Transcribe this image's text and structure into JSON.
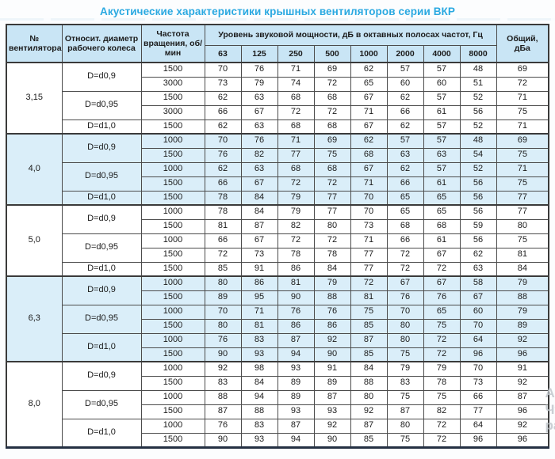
{
  "title": "Акустические характеристики крышных вентиляторов серии ВКР",
  "colors": {
    "title_accent": "#2aa9e1",
    "header_bg": "#c9e5f5",
    "section_tint_bg": "#daeef9",
    "grid_border": "#4c4c4c",
    "outer_border": "#3a3a3a"
  },
  "watermark": {
    "lines": [
      "Ан",
      "Чт",
      "ра"
    ]
  },
  "table": {
    "header": {
      "fan": "№ вентилятора",
      "diameter": "Относит. диаметр рабочего колеса",
      "rpm": "Частота вращения, об/мин",
      "spl": "Уровень звуковой мощности, дБ в октавных полосах частот, Гц",
      "freqs": [
        "63",
        "125",
        "250",
        "500",
        "1000",
        "2000",
        "4000",
        "8000"
      ],
      "total": "Общий, дБа"
    },
    "sections": [
      {
        "fan": "3,15",
        "tinted": false,
        "groups": [
          {
            "diameter": "D=d0,9",
            "rows": [
              {
                "rpm": "1500",
                "values": [
                  70,
                  76,
                  71,
                  69,
                  62,
                  57,
                  57,
                  48
                ],
                "total": 69
              },
              {
                "rpm": "3000",
                "values": [
                  73,
                  79,
                  74,
                  72,
                  65,
                  60,
                  60,
                  51
                ],
                "total": 72
              }
            ]
          },
          {
            "diameter": "D=d0,95",
            "rows": [
              {
                "rpm": "1500",
                "values": [
                  62,
                  63,
                  68,
                  68,
                  67,
                  62,
                  57,
                  52
                ],
                "total": 71
              },
              {
                "rpm": "3000",
                "values": [
                  66,
                  67,
                  72,
                  72,
                  71,
                  66,
                  61,
                  56
                ],
                "total": 75
              }
            ]
          },
          {
            "diameter": "D=d1,0",
            "rows": [
              {
                "rpm": "1500",
                "values": [
                  62,
                  63,
                  68,
                  68,
                  67,
                  62,
                  57,
                  52
                ],
                "total": 71
              }
            ]
          }
        ]
      },
      {
        "fan": "4,0",
        "tinted": true,
        "groups": [
          {
            "diameter": "D=d0,9",
            "rows": [
              {
                "rpm": "1000",
                "values": [
                  70,
                  76,
                  71,
                  69,
                  62,
                  57,
                  57,
                  48
                ],
                "total": 69
              },
              {
                "rpm": "1500",
                "values": [
                  76,
                  82,
                  77,
                  75,
                  68,
                  63,
                  63,
                  54
                ],
                "total": 75
              }
            ]
          },
          {
            "diameter": "D=d0,95",
            "rows": [
              {
                "rpm": "1000",
                "values": [
                  62,
                  63,
                  68,
                  68,
                  67,
                  62,
                  57,
                  52
                ],
                "total": 71
              },
              {
                "rpm": "1500",
                "values": [
                  66,
                  67,
                  72,
                  72,
                  71,
                  66,
                  61,
                  56
                ],
                "total": 75
              }
            ]
          },
          {
            "diameter": "D=d1,0",
            "rows": [
              {
                "rpm": "1500",
                "values": [
                  78,
                  84,
                  79,
                  77,
                  70,
                  65,
                  65,
                  56
                ],
                "total": 77
              }
            ]
          }
        ]
      },
      {
        "fan": "5,0",
        "tinted": false,
        "groups": [
          {
            "diameter": "D=d0,9",
            "rows": [
              {
                "rpm": "1000",
                "values": [
                  78,
                  84,
                  79,
                  77,
                  70,
                  65,
                  65,
                  56
                ],
                "total": 77
              },
              {
                "rpm": "1500",
                "values": [
                  81,
                  87,
                  82,
                  80,
                  73,
                  68,
                  68,
                  59
                ],
                "total": 80
              }
            ]
          },
          {
            "diameter": "D=d0,95",
            "rows": [
              {
                "rpm": "1000",
                "values": [
                  66,
                  67,
                  72,
                  72,
                  71,
                  66,
                  61,
                  56
                ],
                "total": 75
              },
              {
                "rpm": "1500",
                "values": [
                  72,
                  73,
                  78,
                  78,
                  77,
                  72,
                  67,
                  62
                ],
                "total": 81
              }
            ]
          },
          {
            "diameter": "D=d1,0",
            "rows": [
              {
                "rpm": "1500",
                "values": [
                  85,
                  91,
                  86,
                  84,
                  77,
                  72,
                  72,
                  63
                ],
                "total": 84
              }
            ]
          }
        ]
      },
      {
        "fan": "6,3",
        "tinted": true,
        "groups": [
          {
            "diameter": "D=d0,9",
            "rows": [
              {
                "rpm": "1000",
                "values": [
                  80,
                  86,
                  81,
                  79,
                  72,
                  67,
                  67,
                  58
                ],
                "total": 79
              },
              {
                "rpm": "1500",
                "values": [
                  89,
                  95,
                  90,
                  88,
                  81,
                  76,
                  76,
                  67
                ],
                "total": 88
              }
            ]
          },
          {
            "diameter": "D=d0,95",
            "rows": [
              {
                "rpm": "1000",
                "values": [
                  70,
                  71,
                  76,
                  76,
                  75,
                  70,
                  65,
                  60
                ],
                "total": 79
              },
              {
                "rpm": "1500",
                "values": [
                  80,
                  81,
                  86,
                  86,
                  85,
                  80,
                  75,
                  70
                ],
                "total": 89
              }
            ]
          },
          {
            "diameter": "D=d1,0",
            "rows": [
              {
                "rpm": "1000",
                "values": [
                  76,
                  83,
                  87,
                  92,
                  87,
                  80,
                  72,
                  64
                ],
                "total": 92
              },
              {
                "rpm": "1500",
                "values": [
                  90,
                  93,
                  94,
                  90,
                  85,
                  75,
                  72,
                  96
                ],
                "total": 96
              }
            ]
          }
        ]
      },
      {
        "fan": "8,0",
        "tinted": false,
        "groups": [
          {
            "diameter": "D=d0,9",
            "rows": [
              {
                "rpm": "1000",
                "values": [
                  92,
                  98,
                  93,
                  91,
                  84,
                  79,
                  79,
                  70
                ],
                "total": 91
              },
              {
                "rpm": "1500",
                "values": [
                  83,
                  84,
                  89,
                  89,
                  88,
                  83,
                  78,
                  73
                ],
                "total": 92
              }
            ]
          },
          {
            "diameter": "D=d0,95",
            "rows": [
              {
                "rpm": "1000",
                "values": [
                  88,
                  94,
                  89,
                  87,
                  80,
                  75,
                  75,
                  66
                ],
                "total": 87
              },
              {
                "rpm": "1500",
                "values": [
                  87,
                  88,
                  93,
                  93,
                  92,
                  87,
                  82,
                  77
                ],
                "total": 96
              }
            ]
          },
          {
            "diameter": "D=d1,0",
            "rows": [
              {
                "rpm": "1000",
                "values": [
                  76,
                  83,
                  87,
                  92,
                  87,
                  80,
                  72,
                  64
                ],
                "total": 92
              },
              {
                "rpm": "1500",
                "values": [
                  90,
                  93,
                  94,
                  90,
                  85,
                  75,
                  72,
                  96
                ],
                "total": 96
              }
            ]
          }
        ]
      }
    ]
  }
}
